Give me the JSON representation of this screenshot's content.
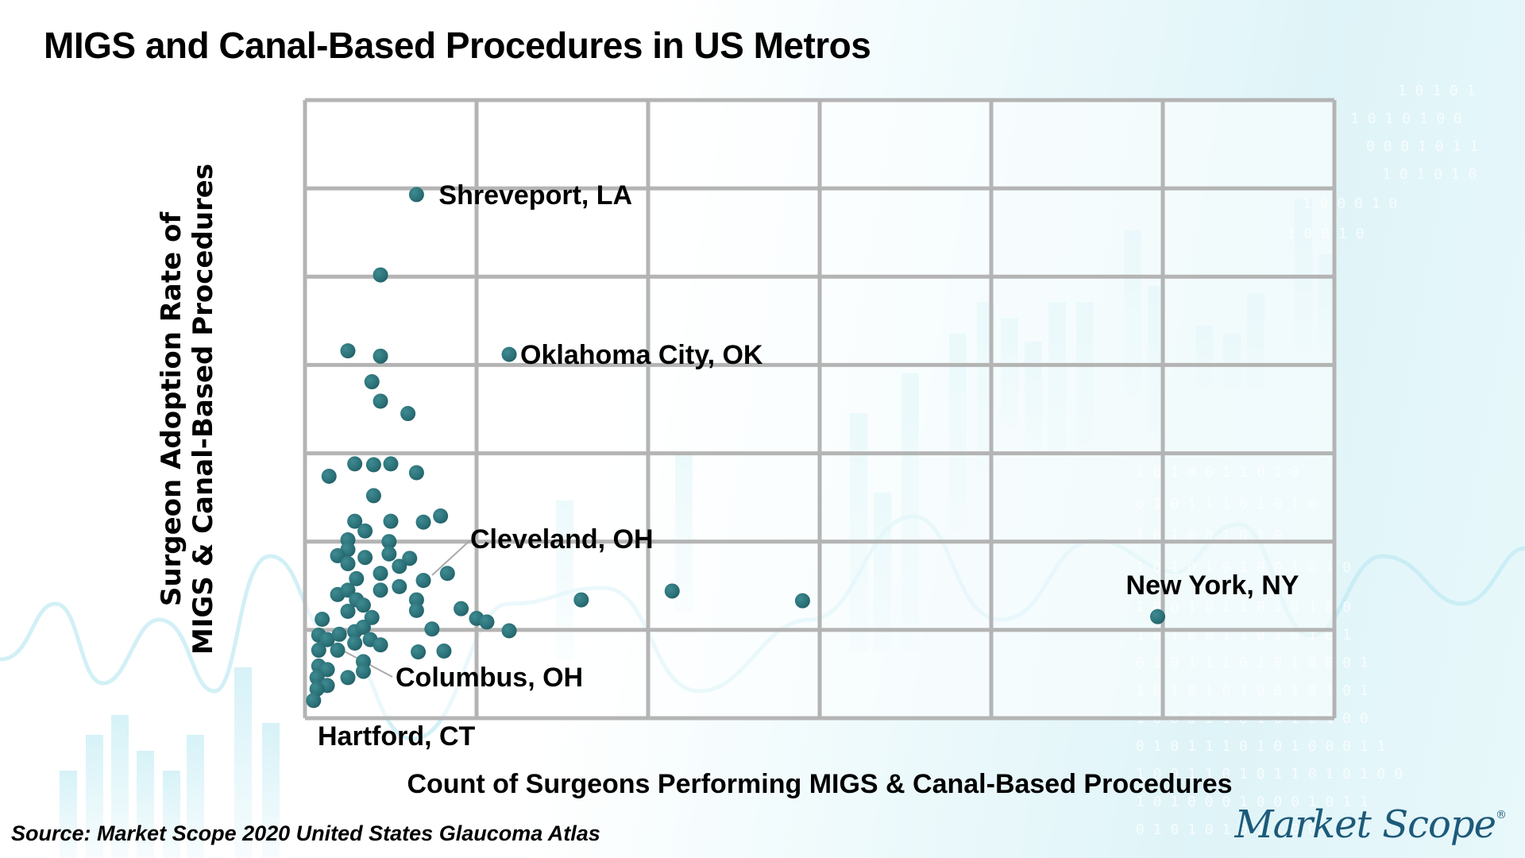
{
  "page": {
    "title": "MIGS and Canal-Based Procedures in US Metros",
    "source": "Source: Market Scope 2020 United States Glaucoma Atlas",
    "logo_text": "Market Scope",
    "logo_mark": "®"
  },
  "colors": {
    "dot": "#2a6f76",
    "grid": "#b4b4b4",
    "leader": "#aaaaaa"
  },
  "chart_data": {
    "type": "scatter",
    "title": "MIGS and Canal-Based Procedures in US Metros",
    "xlabel": "Count of Surgeons Performing MIGS & Canal-Based Procedures",
    "ylabel_lines": [
      "Surgeon Adoption Rate of",
      "MIGS & Canal-Based Procedures"
    ],
    "units_note": "No tick labels shown; values are in gridline units (x: 0-6 columns, y: 0-7 rows)",
    "xlim": [
      0,
      6
    ],
    "ylim": [
      0,
      7
    ],
    "grid": true,
    "legend": "none",
    "points": [
      {
        "x": 0.65,
        "y": 5.93,
        "label": "Shreveport, LA"
      },
      {
        "x": 0.44,
        "y": 5.02
      },
      {
        "x": 0.25,
        "y": 4.16
      },
      {
        "x": 0.44,
        "y": 4.1
      },
      {
        "x": 1.19,
        "y": 4.12,
        "label": "Oklahoma City, OK"
      },
      {
        "x": 0.39,
        "y": 3.81
      },
      {
        "x": 0.44,
        "y": 3.59
      },
      {
        "x": 0.6,
        "y": 3.45
      },
      {
        "x": 0.14,
        "y": 2.74
      },
      {
        "x": 0.29,
        "y": 2.88
      },
      {
        "x": 0.4,
        "y": 2.87
      },
      {
        "x": 0.5,
        "y": 2.88
      },
      {
        "x": 0.65,
        "y": 2.78
      },
      {
        "x": 0.4,
        "y": 2.52
      },
      {
        "x": 0.29,
        "y": 2.23
      },
      {
        "x": 0.35,
        "y": 2.12
      },
      {
        "x": 0.5,
        "y": 2.23
      },
      {
        "x": 0.69,
        "y": 2.22
      },
      {
        "x": 0.79,
        "y": 2.29
      },
      {
        "x": 0.25,
        "y": 2.02
      },
      {
        "x": 0.25,
        "y": 1.91
      },
      {
        "x": 0.19,
        "y": 1.84
      },
      {
        "x": 0.25,
        "y": 1.75
      },
      {
        "x": 0.35,
        "y": 1.82
      },
      {
        "x": 0.49,
        "y": 2.0
      },
      {
        "x": 0.49,
        "y": 1.86
      },
      {
        "x": 0.61,
        "y": 1.81
      },
      {
        "x": 0.55,
        "y": 1.72
      },
      {
        "x": 0.44,
        "y": 1.64
      },
      {
        "x": 0.3,
        "y": 1.58
      },
      {
        "x": 0.69,
        "y": 1.56,
        "label": "Cleveland, OH"
      },
      {
        "x": 0.83,
        "y": 1.64
      },
      {
        "x": 0.44,
        "y": 1.45
      },
      {
        "x": 0.55,
        "y": 1.49
      },
      {
        "x": 0.19,
        "y": 1.4
      },
      {
        "x": 0.25,
        "y": 1.45
      },
      {
        "x": 0.3,
        "y": 1.34
      },
      {
        "x": 0.34,
        "y": 1.28
      },
      {
        "x": 0.65,
        "y": 1.34
      },
      {
        "x": 0.65,
        "y": 1.22
      },
      {
        "x": 0.25,
        "y": 1.21
      },
      {
        "x": 0.39,
        "y": 1.14
      },
      {
        "x": 0.1,
        "y": 1.12
      },
      {
        "x": 0.29,
        "y": 0.98
      },
      {
        "x": 0.34,
        "y": 1.03
      },
      {
        "x": 0.08,
        "y": 0.94
      },
      {
        "x": 0.13,
        "y": 0.89
      },
      {
        "x": 0.2,
        "y": 0.95
      },
      {
        "x": 0.29,
        "y": 0.85
      },
      {
        "x": 0.38,
        "y": 0.89
      },
      {
        "x": 0.44,
        "y": 0.83
      },
      {
        "x": 0.08,
        "y": 0.77
      },
      {
        "x": 0.19,
        "y": 0.77
      },
      {
        "x": 0.66,
        "y": 0.75
      },
      {
        "x": 0.81,
        "y": 0.76
      },
      {
        "x": 0.74,
        "y": 1.01
      },
      {
        "x": 0.34,
        "y": 0.64,
        "label": "Columbus, OH"
      },
      {
        "x": 0.34,
        "y": 0.53
      },
      {
        "x": 0.08,
        "y": 0.59
      },
      {
        "x": 0.13,
        "y": 0.55
      },
      {
        "x": 0.07,
        "y": 0.46
      },
      {
        "x": 0.13,
        "y": 0.37
      },
      {
        "x": 0.25,
        "y": 0.46
      },
      {
        "x": 0.07,
        "y": 0.33
      },
      {
        "x": 0.05,
        "y": 0.2,
        "label": "Hartford, CT"
      },
      {
        "x": 0.91,
        "y": 1.24
      },
      {
        "x": 1.0,
        "y": 1.13
      },
      {
        "x": 1.06,
        "y": 1.09
      },
      {
        "x": 1.19,
        "y": 0.99
      },
      {
        "x": 1.61,
        "y": 1.34
      },
      {
        "x": 2.14,
        "y": 1.44
      },
      {
        "x": 2.9,
        "y": 1.33
      },
      {
        "x": 4.97,
        "y": 1.15,
        "label": "New York, NY"
      }
    ],
    "annotations": [
      {
        "text": "Shreveport, LA",
        "point_index": 0,
        "leader_line": false
      },
      {
        "text": "Oklahoma City, OK",
        "point_index": 4,
        "leader_line": false
      },
      {
        "text": "Cleveland, OH",
        "point_index": 30,
        "leader_line": true
      },
      {
        "text": "New York, NY",
        "point_index": 72,
        "leader_line": false
      },
      {
        "text": "Columbus, OH",
        "point_index": 56,
        "leader_line": true
      },
      {
        "text": "Hartford, CT",
        "point_index": 64,
        "leader_line": false
      }
    ]
  }
}
